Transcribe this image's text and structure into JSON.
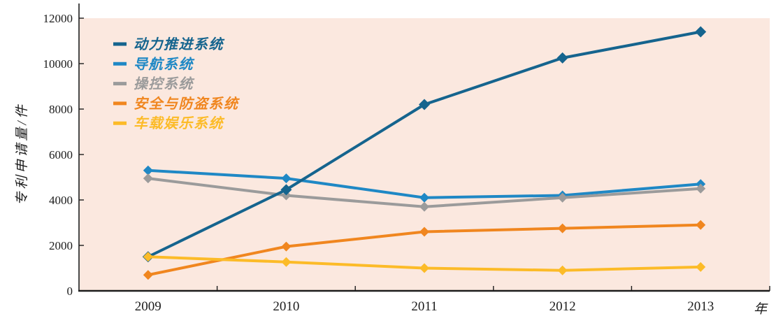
{
  "chart_data": {
    "type": "line",
    "title": "",
    "x": [
      "2009",
      "2010",
      "2011",
      "2012",
      "2013"
    ],
    "series": [
      {
        "id": "power-propulsion",
        "name": "动力推进系统",
        "color": "#15648e",
        "values": [
          1500,
          4450,
          8200,
          10250,
          11400
        ]
      },
      {
        "id": "navigation",
        "name": "导航系统",
        "color": "#1f88c5",
        "values": [
          5300,
          4950,
          4100,
          4200,
          4700
        ]
      },
      {
        "id": "control",
        "name": "操控系统",
        "color": "#9b9b9b",
        "values": [
          4950,
          4200,
          3700,
          4100,
          4500
        ]
      },
      {
        "id": "security-antitheft",
        "name": "安全与防盗系统",
        "color": "#f0861f",
        "values": [
          700,
          1950,
          2600,
          2750,
          2900
        ]
      },
      {
        "id": "entertainment",
        "name": "车载娱乐系统",
        "color": "#fcbb28",
        "values": [
          1500,
          1270,
          1000,
          900,
          1050
        ]
      }
    ],
    "draw_order": [
      1,
      2,
      0,
      3,
      4
    ],
    "ylabel": "专利申请量/件",
    "xlabel": "年",
    "ylim": [
      0,
      12000
    ],
    "yticks": [
      0,
      2000,
      4000,
      6000,
      8000,
      10000,
      12000
    ],
    "grid": false,
    "legend_position": "upper-left-inside",
    "plot_bg": "#fbe8df",
    "axis_color": "#1c1c1c",
    "marker": "diamond"
  }
}
